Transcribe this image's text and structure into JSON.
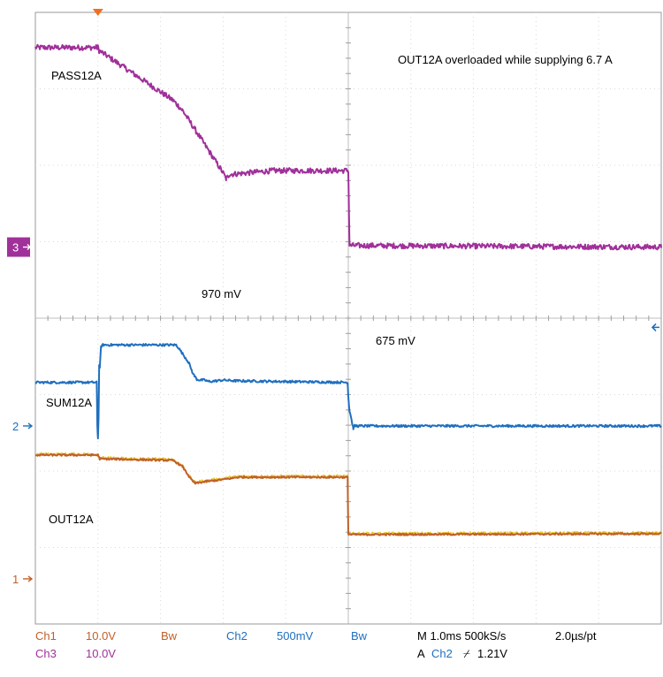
{
  "chart_data": {
    "type": "line",
    "title": "",
    "x_divisions": 10,
    "y_divisions": 8,
    "annotations": {
      "header": "OUT12A overloaded while supplying 6.7 A",
      "v_high": "970 mV",
      "v_low": "675 mV"
    },
    "series": [
      {
        "name": "PASS12A",
        "channel": "3",
        "color": "#a0309a",
        "noise": 0.035,
        "x": [
          0,
          1.0,
          1.02,
          2.2,
          2.35,
          3.0,
          3.05,
          3.1,
          3.8,
          3.82,
          5.0,
          5.02,
          10
        ],
        "y": [
          7.54,
          7.54,
          7.5,
          6.85,
          6.72,
          5.9,
          5.82,
          5.88,
          5.93,
          5.93,
          5.93,
          4.95,
          4.93
        ]
      },
      {
        "name": "SUM12A",
        "channel": "2",
        "color": "#1f6fbf",
        "noise": 0.015,
        "x": [
          0,
          0.98,
          0.99,
          1.0,
          1.01,
          1.02,
          1.03,
          1.05,
          1.08,
          2.25,
          2.28,
          2.45,
          2.52,
          2.58,
          2.63,
          2.7,
          2.78,
          3.0,
          3.2,
          4.99,
          5.0,
          5.02,
          5.04,
          5.06,
          5.08,
          5.1,
          5.14,
          10
        ],
        "y": [
          3.16,
          3.16,
          2.6,
          2.43,
          2.7,
          3.38,
          3.36,
          3.63,
          3.65,
          3.65,
          3.62,
          3.42,
          3.27,
          3.2,
          3.19,
          3.19,
          3.17,
          3.19,
          3.18,
          3.16,
          2.98,
          2.78,
          2.73,
          2.63,
          2.56,
          2.59,
          2.59,
          2.59
        ]
      },
      {
        "name": "OUT12A",
        "channel": "1",
        "color": "#c0602a",
        "noise": 0.012,
        "x": [
          0,
          1.0,
          1.03,
          2.2,
          2.35,
          2.48,
          2.55,
          2.7,
          3.0,
          3.25,
          4.99,
          5.0,
          5.05,
          10
        ],
        "y": [
          2.21,
          2.21,
          2.16,
          2.14,
          2.06,
          1.9,
          1.84,
          1.86,
          1.89,
          1.92,
          1.92,
          1.18,
          1.17,
          1.18
        ]
      },
      {
        "name": "",
        "channel": "",
        "color": "#e6c21a",
        "noise": 0.02,
        "x": [
          0,
          1.0,
          1.03,
          2.2,
          2.35,
          2.48,
          2.55,
          2.7,
          3.0,
          3.25,
          4.99,
          5.0,
          5.05,
          10
        ],
        "y": [
          2.22,
          2.22,
          2.17,
          2.15,
          2.07,
          1.91,
          1.85,
          1.87,
          1.9,
          1.93,
          1.93,
          1.19,
          1.18,
          1.19
        ]
      }
    ],
    "ground_markers": [
      {
        "label": "3",
        "y": 4.93,
        "color": "#a0309a"
      },
      {
        "label": "2",
        "y": 2.59,
        "color": "#1f6fbf"
      },
      {
        "label": "1",
        "y": 0.59,
        "color": "#c0602a"
      }
    ],
    "trigger_level_y": 3.88,
    "trigger_x": 1.0,
    "readouts": {
      "ch1_label": "Ch1",
      "ch1_scale": "10.0V",
      "ch3_label": "Ch3",
      "ch3_scale": "10.0V",
      "bw_a": "Bw",
      "bw_b": "Bw",
      "ch2_label": "Ch2",
      "ch2_scale": "500mV",
      "timebase": "M 1.0ms 500kS/s",
      "resolution": "2.0µs/pt",
      "trigger_prefix": "A",
      "trigger_ch": "Ch2",
      "trigger_slope": "⌿",
      "trigger_value": "1.21V"
    }
  }
}
